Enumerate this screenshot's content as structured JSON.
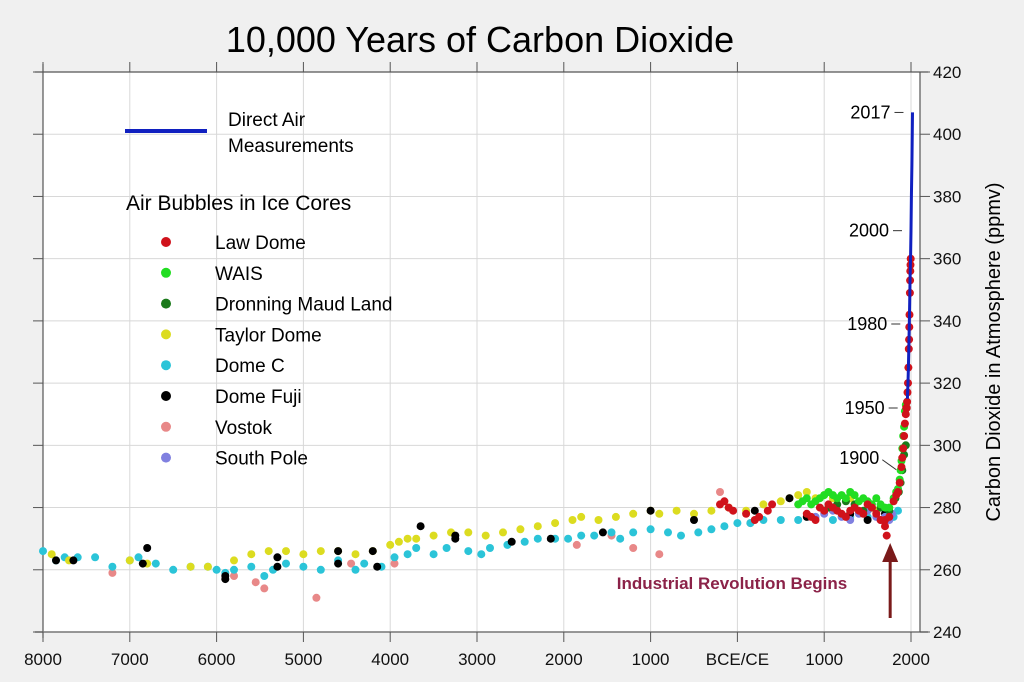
{
  "chart_data": {
    "type": "scatter",
    "title": "10,000 Years of Carbon Dioxide",
    "xlabel": "",
    "ylabel": "Carbon Dioxide in Atmosphere (ppmv)",
    "xlim": [
      -8000,
      2100
    ],
    "ylim": [
      240,
      420
    ],
    "grid": true,
    "x_ticks": [
      {
        "value": -8000,
        "label": "8000"
      },
      {
        "value": -7000,
        "label": "7000"
      },
      {
        "value": -6000,
        "label": "6000"
      },
      {
        "value": -5000,
        "label": "5000"
      },
      {
        "value": -4000,
        "label": "4000"
      },
      {
        "value": -3000,
        "label": "3000"
      },
      {
        "value": -2000,
        "label": "2000"
      },
      {
        "value": -1000,
        "label": "1000"
      },
      {
        "value": 0,
        "label": "BCE/CE"
      },
      {
        "value": 1000,
        "label": "1000"
      },
      {
        "value": 2000,
        "label": "2000"
      }
    ],
    "y_ticks": [
      240,
      260,
      280,
      300,
      320,
      340,
      360,
      380,
      400,
      420
    ],
    "legend_placement": "top-left",
    "legend": {
      "line_entry": "Direct Air Measurements",
      "line_entry_lines": [
        "Direct Air",
        "Measurements"
      ],
      "group_heading": "Air Bubbles in Ice Cores"
    },
    "series": [
      {
        "name": "Direct Air Measurements",
        "kind": "line",
        "color": "#1020c0",
        "points": [
          [
            1958,
            315
          ],
          [
            1965,
            320
          ],
          [
            1970,
            325
          ],
          [
            1975,
            331
          ],
          [
            1980,
            339
          ],
          [
            1985,
            346
          ],
          [
            1990,
            354
          ],
          [
            1995,
            361
          ],
          [
            2000,
            369
          ],
          [
            2005,
            380
          ],
          [
            2010,
            390
          ],
          [
            2017,
            407
          ]
        ]
      },
      {
        "name": "Law Dome",
        "kind": "scatter",
        "color": "#d0121b",
        "points": [
          [
            800,
            278
          ],
          [
            850,
            277
          ],
          [
            900,
            276
          ],
          [
            950,
            280
          ],
          [
            1000,
            279
          ],
          [
            1050,
            281
          ],
          [
            1100,
            280
          ],
          [
            1150,
            279
          ],
          [
            1200,
            278
          ],
          [
            1250,
            277
          ],
          [
            1300,
            279
          ],
          [
            1350,
            280
          ],
          [
            1400,
            279
          ],
          [
            1450,
            278
          ],
          [
            1500,
            281
          ],
          [
            1550,
            280
          ],
          [
            1600,
            278
          ],
          [
            1650,
            276
          ],
          [
            1700,
            276
          ],
          [
            1750,
            277
          ],
          [
            1800,
            282
          ],
          [
            1830,
            284
          ],
          [
            1850,
            285
          ],
          [
            1870,
            288
          ],
          [
            1890,
            293
          ],
          [
            1900,
            296
          ],
          [
            1910,
            299
          ],
          [
            1920,
            303
          ],
          [
            1930,
            307
          ],
          [
            1940,
            310
          ],
          [
            1945,
            312
          ],
          [
            1950,
            312
          ],
          [
            1955,
            314
          ],
          [
            1960,
            317
          ],
          [
            1965,
            320
          ],
          [
            1970,
            325
          ],
          [
            1975,
            331
          ],
          [
            1978,
            334
          ],
          [
            1980,
            338
          ],
          [
            1983,
            342
          ],
          [
            1987,
            349
          ],
          [
            1990,
            353
          ],
          [
            1992,
            356
          ],
          [
            1994,
            358
          ],
          [
            1996,
            360
          ],
          [
            1700,
            274
          ],
          [
            1720,
            271
          ],
          [
            -200,
            281
          ],
          [
            -150,
            282
          ],
          [
            -100,
            280
          ],
          [
            -50,
            279
          ],
          [
            100,
            278
          ],
          [
            200,
            276
          ],
          [
            250,
            277
          ],
          [
            350,
            279
          ],
          [
            400,
            281
          ]
        ]
      },
      {
        "name": "WAIS",
        "kind": "scatter",
        "color": "#22dd22",
        "points": [
          [
            1000,
            284
          ],
          [
            1050,
            285
          ],
          [
            1100,
            284
          ],
          [
            1150,
            283
          ],
          [
            1200,
            284
          ],
          [
            1250,
            283
          ],
          [
            1300,
            285
          ],
          [
            1350,
            284
          ],
          [
            1400,
            282
          ],
          [
            1450,
            283
          ],
          [
            1500,
            282
          ],
          [
            1550,
            281
          ],
          [
            1600,
            283
          ],
          [
            1650,
            281
          ],
          [
            1700,
            280
          ],
          [
            1750,
            280
          ],
          [
            1800,
            283
          ],
          [
            1830,
            285
          ],
          [
            1850,
            286
          ],
          [
            1870,
            289
          ],
          [
            1880,
            292
          ],
          [
            1890,
            295
          ],
          [
            1900,
            299
          ],
          [
            1910,
            303
          ],
          [
            1920,
            306
          ],
          [
            1930,
            311
          ],
          [
            1940,
            313
          ],
          [
            900,
            282
          ],
          [
            850,
            281
          ],
          [
            800,
            283
          ],
          [
            950,
            283
          ],
          [
            750,
            282
          ],
          [
            700,
            281
          ]
        ]
      },
      {
        "name": "Dronning Maud Land",
        "kind": "scatter",
        "color": "#1a7a1a",
        "points": [
          [
            1050,
            280
          ],
          [
            1150,
            281
          ],
          [
            1250,
            282
          ],
          [
            1350,
            281
          ],
          [
            1450,
            279
          ],
          [
            1550,
            280
          ],
          [
            1650,
            280
          ],
          [
            1750,
            279
          ],
          [
            1820,
            283
          ],
          [
            1860,
            285
          ],
          [
            1880,
            288
          ],
          [
            1900,
            292
          ],
          [
            1920,
            297
          ],
          [
            1940,
            300
          ]
        ]
      },
      {
        "name": "Taylor Dome",
        "kind": "scatter",
        "color": "#dcdc20",
        "points": [
          [
            -7900,
            265
          ],
          [
            -7700,
            263
          ],
          [
            -7000,
            263
          ],
          [
            -6800,
            262
          ],
          [
            -6300,
            261
          ],
          [
            -6100,
            261
          ],
          [
            -5800,
            263
          ],
          [
            -5600,
            265
          ],
          [
            -5400,
            266
          ],
          [
            -5200,
            266
          ],
          [
            -5000,
            265
          ],
          [
            -4800,
            266
          ],
          [
            -4600,
            266
          ],
          [
            -4400,
            265
          ],
          [
            -4200,
            266
          ],
          [
            -4000,
            268
          ],
          [
            -3900,
            269
          ],
          [
            -3800,
            270
          ],
          [
            -3700,
            270
          ],
          [
            -3500,
            271
          ],
          [
            -3300,
            272
          ],
          [
            -3100,
            272
          ],
          [
            -2900,
            271
          ],
          [
            -2700,
            272
          ],
          [
            -2500,
            273
          ],
          [
            -2300,
            274
          ],
          [
            -2100,
            275
          ],
          [
            -1900,
            276
          ],
          [
            -1800,
            277
          ],
          [
            -1600,
            276
          ],
          [
            -1400,
            277
          ],
          [
            -1200,
            278
          ],
          [
            -1000,
            279
          ],
          [
            -900,
            278
          ],
          [
            -700,
            279
          ],
          [
            -500,
            278
          ],
          [
            -300,
            279
          ],
          [
            -100,
            280
          ],
          [
            100,
            279
          ],
          [
            300,
            281
          ],
          [
            500,
            282
          ],
          [
            600,
            283
          ],
          [
            700,
            284
          ],
          [
            800,
            285
          ],
          [
            900,
            283
          ],
          [
            1000,
            284
          ],
          [
            1100,
            283
          ],
          [
            1300,
            283
          ],
          [
            1500,
            279
          ],
          [
            1600,
            279
          ]
        ]
      },
      {
        "name": "Dome C",
        "kind": "scatter",
        "color": "#2bc4d8",
        "points": [
          [
            -8000,
            266
          ],
          [
            -7850,
            263
          ],
          [
            -7750,
            264
          ],
          [
            -7600,
            264
          ],
          [
            -7400,
            264
          ],
          [
            -7200,
            261
          ],
          [
            -7000,
            263
          ],
          [
            -6900,
            264
          ],
          [
            -6700,
            262
          ],
          [
            -6500,
            260
          ],
          [
            -6300,
            261
          ],
          [
            -6100,
            261
          ],
          [
            -6000,
            260
          ],
          [
            -5900,
            259
          ],
          [
            -5800,
            260
          ],
          [
            -5600,
            261
          ],
          [
            -5450,
            258
          ],
          [
            -5350,
            260
          ],
          [
            -5200,
            262
          ],
          [
            -5000,
            261
          ],
          [
            -4800,
            260
          ],
          [
            -4600,
            263
          ],
          [
            -4400,
            260
          ],
          [
            -4300,
            262
          ],
          [
            -4100,
            261
          ],
          [
            -3950,
            264
          ],
          [
            -3800,
            265
          ],
          [
            -3700,
            267
          ],
          [
            -3500,
            265
          ],
          [
            -3350,
            267
          ],
          [
            -3100,
            266
          ],
          [
            -2950,
            265
          ],
          [
            -2850,
            267
          ],
          [
            -2650,
            268
          ],
          [
            -2450,
            269
          ],
          [
            -2300,
            270
          ],
          [
            -2100,
            270
          ],
          [
            -1950,
            270
          ],
          [
            -1800,
            271
          ],
          [
            -1650,
            271
          ],
          [
            -1450,
            272
          ],
          [
            -1350,
            270
          ],
          [
            -1200,
            272
          ],
          [
            -1000,
            273
          ],
          [
            -800,
            272
          ],
          [
            -650,
            271
          ],
          [
            -450,
            272
          ],
          [
            -300,
            273
          ],
          [
            -150,
            274
          ],
          [
            0,
            275
          ],
          [
            150,
            275
          ],
          [
            300,
            276
          ],
          [
            500,
            276
          ],
          [
            700,
            276
          ],
          [
            900,
            277
          ],
          [
            1100,
            276
          ],
          [
            1300,
            277
          ],
          [
            1500,
            277
          ],
          [
            1700,
            276
          ],
          [
            1800,
            277
          ],
          [
            1850,
            279
          ]
        ]
      },
      {
        "name": "Dome Fuji",
        "kind": "scatter",
        "color": "#000000",
        "points": [
          [
            -7850,
            263
          ],
          [
            -7650,
            263
          ],
          [
            -6800,
            267
          ],
          [
            -6850,
            262
          ],
          [
            -5900,
            258
          ],
          [
            -5900,
            257
          ],
          [
            -5300,
            264
          ],
          [
            -5300,
            261
          ],
          [
            -4600,
            266
          ],
          [
            -4600,
            262
          ],
          [
            -4200,
            266
          ],
          [
            -4150,
            261
          ],
          [
            -3650,
            274
          ],
          [
            -3250,
            271
          ],
          [
            -3250,
            270
          ],
          [
            -2600,
            269
          ],
          [
            -2150,
            270
          ],
          [
            -1550,
            272
          ],
          [
            -1000,
            279
          ],
          [
            -500,
            276
          ],
          [
            200,
            279
          ],
          [
            600,
            283
          ],
          [
            800,
            277
          ],
          [
            1100,
            280
          ],
          [
            1300,
            278
          ],
          [
            1500,
            276
          ],
          [
            1700,
            278
          ]
        ]
      },
      {
        "name": "Vostok",
        "kind": "scatter",
        "color": "#e88888",
        "points": [
          [
            -7200,
            259
          ],
          [
            -5800,
            258
          ],
          [
            -5550,
            256
          ],
          [
            -5450,
            254
          ],
          [
            -4850,
            251
          ],
          [
            -4450,
            262
          ],
          [
            -3950,
            262
          ],
          [
            -1850,
            268
          ],
          [
            -1450,
            271
          ],
          [
            -1200,
            267
          ],
          [
            -900,
            265
          ],
          [
            -200,
            285
          ],
          [
            150,
            275
          ]
        ]
      },
      {
        "name": "South Pole",
        "kind": "scatter",
        "color": "#8080e0",
        "points": [
          [
            900,
            277
          ],
          [
            1000,
            278
          ],
          [
            1100,
            279
          ],
          [
            1200,
            277
          ],
          [
            1300,
            276
          ],
          [
            1400,
            278
          ],
          [
            1500,
            279
          ],
          [
            1600,
            277
          ],
          [
            1650,
            276
          ],
          [
            1700,
            277
          ],
          [
            1750,
            276
          ],
          [
            1780,
            278
          ]
        ]
      }
    ],
    "annotations": {
      "year_labels": [
        {
          "label": "2017",
          "year": 2017,
          "ppmv": 407
        },
        {
          "label": "2000",
          "year": 2000,
          "ppmv": 369
        },
        {
          "label": "1980",
          "year": 1980,
          "ppmv": 339
        },
        {
          "label": "1950",
          "year": 1950,
          "ppmv": 312
        },
        {
          "label": "1900",
          "year": 1900,
          "ppmv": 296
        }
      ],
      "industrial": {
        "text": "Industrial Revolution Begins",
        "year": 1760,
        "color": "#8b2248",
        "arrow_color": "#7a1a1a"
      }
    }
  }
}
